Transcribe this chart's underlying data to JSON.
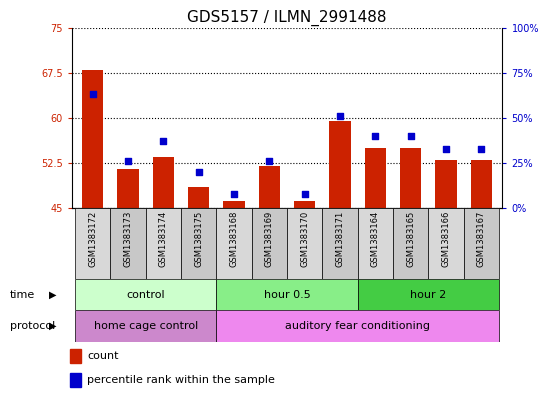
{
  "title": "GDS5157 / ILMN_2991488",
  "samples": [
    "GSM1383172",
    "GSM1383173",
    "GSM1383174",
    "GSM1383175",
    "GSM1383168",
    "GSM1383169",
    "GSM1383170",
    "GSM1383171",
    "GSM1383164",
    "GSM1383165",
    "GSM1383166",
    "GSM1383167"
  ],
  "counts": [
    68.0,
    51.5,
    53.5,
    48.5,
    46.2,
    52.0,
    46.2,
    59.5,
    55.0,
    55.0,
    53.0,
    53.0
  ],
  "percentiles": [
    63,
    26,
    37,
    20,
    8,
    26,
    8,
    51,
    40,
    40,
    33,
    33
  ],
  "ylim_left": [
    45,
    75
  ],
  "ylim_right": [
    0,
    100
  ],
  "yticks_left": [
    45,
    52.5,
    60,
    67.5,
    75
  ],
  "yticks_right": [
    0,
    25,
    50,
    75,
    100
  ],
  "bar_color": "#cc2200",
  "dot_color": "#0000cc",
  "time_labels": [
    "control",
    "hour 0.5",
    "hour 2"
  ],
  "time_groups": [
    4,
    4,
    4
  ],
  "time_colors": [
    "#ccffcc",
    "#88ee88",
    "#44cc44"
  ],
  "protocol_labels": [
    "home cage control",
    "auditory fear conditioning"
  ],
  "protocol_groups": [
    4,
    8
  ],
  "protocol_colors": [
    "#cc88cc",
    "#ee88ee"
  ],
  "legend_items": [
    "count",
    "percentile rank within the sample"
  ],
  "title_fontsize": 11,
  "tick_fontsize": 7,
  "label_fontsize": 8,
  "sample_fontsize": 6
}
